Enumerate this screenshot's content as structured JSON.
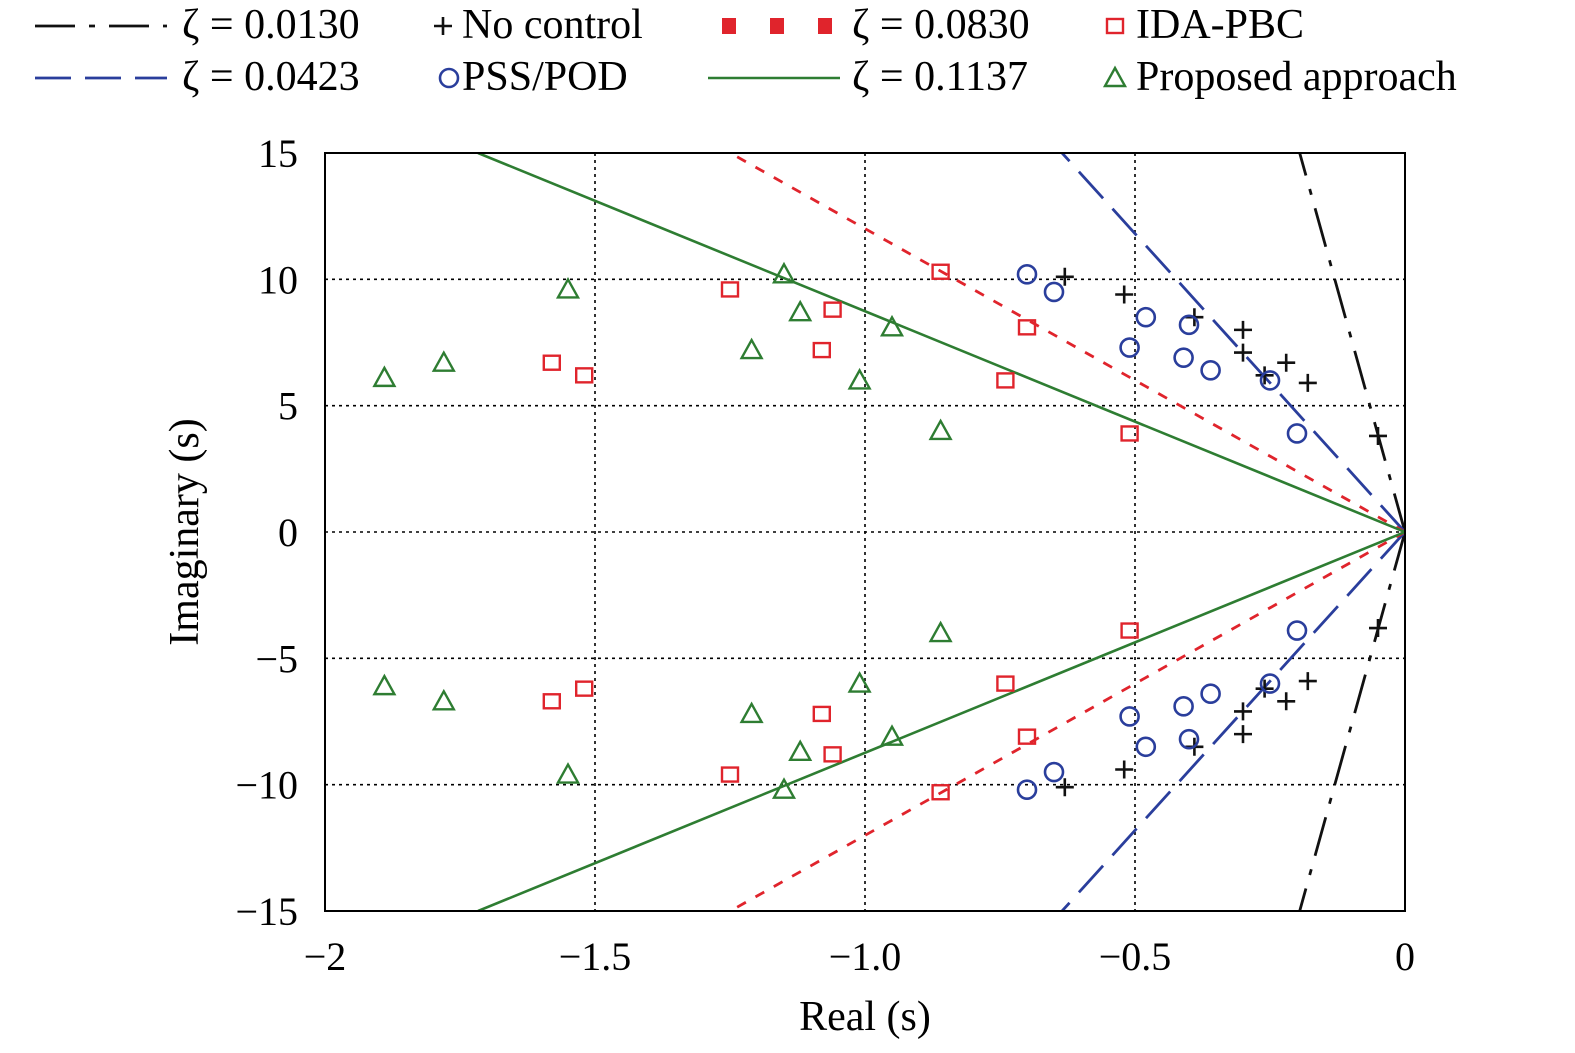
{
  "chart_data": {
    "type": "scatter",
    "title": "",
    "xlabel": "Real (s)",
    "ylabel": "Imaginary (s)",
    "xlim": [
      -2,
      0
    ],
    "ylim": [
      -15,
      15
    ],
    "xticks": [
      -2,
      -1.5,
      -1.0,
      -0.5,
      0
    ],
    "xtick_labels": [
      "−2",
      "−1.5",
      "−1.0",
      "−0.5",
      "0"
    ],
    "yticks": [
      15,
      10,
      5,
      0,
      -5,
      -10,
      -15
    ],
    "ytick_labels": [
      "15",
      "10",
      "5",
      "0",
      "−5",
      "−10",
      "−15"
    ],
    "grid": true,
    "legend_position": "top",
    "colors": {
      "black": "#111111",
      "blue": "#2a3e9c",
      "red": "#e0242c",
      "green": "#2e7d32"
    },
    "damping_lines": [
      {
        "label": "ζ = 0.0130",
        "zeta": 0.013,
        "color": "#111111",
        "style": "dash-dot"
      },
      {
        "label": "ζ = 0.0423",
        "zeta": 0.0423,
        "color": "#2a3e9c",
        "style": "long-dash"
      },
      {
        "label": "ζ = 0.0830",
        "zeta": 0.083,
        "color": "#e0242c",
        "style": "short-dash"
      },
      {
        "label": "ζ = 0.1137",
        "zeta": 0.1137,
        "color": "#2e7d32",
        "style": "solid"
      }
    ],
    "series": [
      {
        "name": "No control",
        "marker": "plus",
        "color": "#111111",
        "x": [
          -0.63,
          -0.63,
          -0.52,
          -0.52,
          -0.39,
          -0.39,
          -0.3,
          -0.3,
          -0.3,
          -0.3,
          -0.26,
          -0.26,
          -0.22,
          -0.22,
          -0.18,
          -0.18,
          -0.05,
          -0.05
        ],
        "y": [
          10.1,
          -10.1,
          9.4,
          -9.4,
          8.5,
          -8.5,
          8.0,
          -8.0,
          7.1,
          -7.1,
          6.2,
          -6.2,
          6.7,
          -6.7,
          5.9,
          -5.9,
          3.8,
          -3.8
        ]
      },
      {
        "name": "PSS/POD",
        "marker": "circle",
        "color": "#2a3e9c",
        "x": [
          -0.7,
          -0.7,
          -0.65,
          -0.65,
          -0.51,
          -0.51,
          -0.48,
          -0.48,
          -0.4,
          -0.4,
          -0.41,
          -0.41,
          -0.36,
          -0.36,
          -0.25,
          -0.25,
          -0.2,
          -0.2
        ],
        "y": [
          10.2,
          -10.2,
          9.5,
          -9.5,
          7.3,
          -7.3,
          8.5,
          -8.5,
          8.2,
          -8.2,
          6.9,
          -6.9,
          6.4,
          -6.4,
          6.0,
          -6.0,
          3.9,
          -3.9
        ]
      },
      {
        "name": "IDA-PBC",
        "marker": "square",
        "color": "#e0242c",
        "x": [
          -1.25,
          -1.25,
          -1.58,
          -1.58,
          -1.52,
          -1.52,
          -1.08,
          -1.08,
          -1.06,
          -1.06,
          -0.86,
          -0.86,
          -0.7,
          -0.7,
          -0.74,
          -0.74,
          -0.51,
          -0.51
        ],
        "y": [
          9.6,
          -9.6,
          6.7,
          -6.7,
          6.2,
          -6.2,
          7.2,
          -7.2,
          8.8,
          -8.8,
          10.3,
          -10.3,
          8.1,
          -8.1,
          6.0,
          -6.0,
          3.9,
          -3.9
        ]
      },
      {
        "name": "Proposed approach",
        "marker": "triangle",
        "color": "#2e7d32",
        "x": [
          -1.89,
          -1.89,
          -1.78,
          -1.78,
          -1.55,
          -1.55,
          -1.21,
          -1.21,
          -1.15,
          -1.15,
          -1.12,
          -1.12,
          -1.01,
          -1.01,
          -0.95,
          -0.95,
          -0.86,
          -0.86
        ],
        "y": [
          6.1,
          -6.1,
          6.7,
          -6.7,
          9.6,
          -9.6,
          7.2,
          -7.2,
          10.2,
          -10.2,
          8.7,
          -8.7,
          6.0,
          -6.0,
          8.1,
          -8.1,
          4.0,
          -4.0
        ]
      }
    ],
    "legend": [
      {
        "label": "ζ = 0.0130",
        "kind": "line",
        "ref": 0
      },
      {
        "label": "No control",
        "kind": "marker",
        "ref": 0
      },
      {
        "label": "ζ = 0.0830",
        "kind": "line",
        "ref": 2
      },
      {
        "label": "IDA-PBC",
        "kind": "marker",
        "ref": 2
      },
      {
        "label": "ζ = 0.0423",
        "kind": "line",
        "ref": 1
      },
      {
        "label": "PSS/POD",
        "kind": "marker",
        "ref": 1
      },
      {
        "label": "ζ = 0.1137",
        "kind": "line",
        "ref": 3
      },
      {
        "label": "Proposed approach",
        "kind": "marker",
        "ref": 3
      }
    ]
  }
}
